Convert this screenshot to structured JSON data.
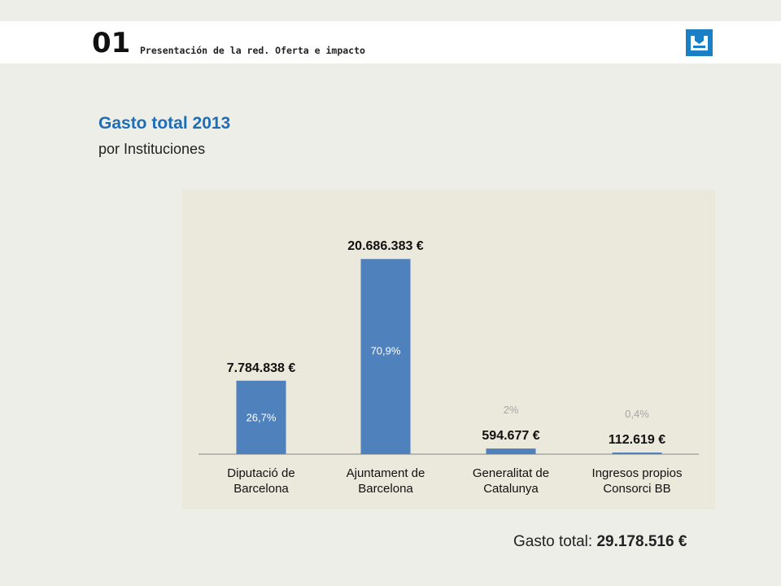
{
  "header": {
    "section_number": "01",
    "section_title": "Presentación de la red. Oferta e impacto",
    "logo_icon": "library-logo-icon",
    "logo_color": "#1a7fc4"
  },
  "chart_data": {
    "type": "bar",
    "title": "Gasto total 2013",
    "subtitle": "por Instituciones",
    "categories": [
      [
        "Diputació de",
        "Barcelona"
      ],
      [
        "Ajuntament de",
        "Barcelona"
      ],
      [
        "Generalitat de",
        "Catalunya"
      ],
      [
        "Ingresos propios",
        "Consorci BB"
      ]
    ],
    "values": [
      7784838,
      20686383,
      594677,
      112619
    ],
    "value_labels": [
      "7.784.838 €",
      "20.686.383 €",
      "594.677 €",
      "112.619 €"
    ],
    "percent_labels": [
      "26,7%",
      "70,9%",
      "2%",
      "0,4%"
    ],
    "ylim": [
      0,
      22000000
    ],
    "grid": false,
    "bar_color": "#4f81bd"
  },
  "footer": {
    "total_label": "Gasto total: ",
    "total_value": "29.178.516 €"
  }
}
